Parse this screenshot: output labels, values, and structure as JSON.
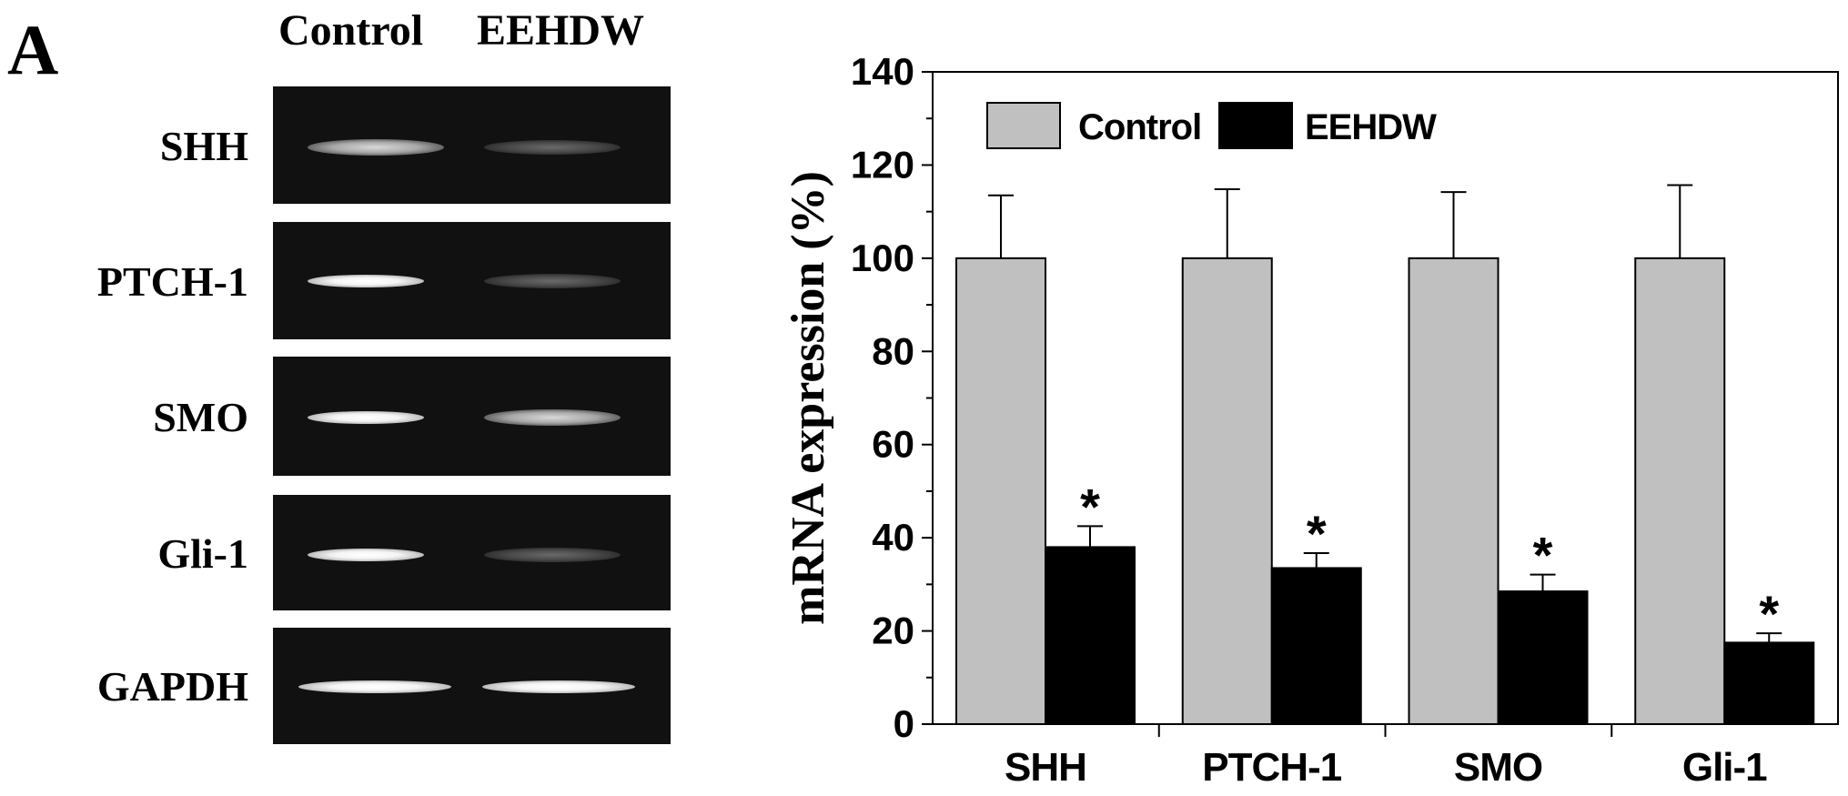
{
  "figure": {
    "panel_label": "A",
    "gel": {
      "lane_headers": [
        "Control",
        "EEHDW"
      ],
      "rows": [
        {
          "label": "SHH",
          "control_band": "medium",
          "treat_band": "faint"
        },
        {
          "label": "PTCH-1",
          "control_band": "bright",
          "treat_band": "faint"
        },
        {
          "label": "SMO",
          "control_band": "bright",
          "treat_band": "medium"
        },
        {
          "label": "Gli-1",
          "control_band": "bright",
          "treat_band": "faint"
        },
        {
          "label": "GAPDH",
          "control_band": "bright",
          "treat_band": "bright"
        }
      ]
    }
  },
  "chart_data": {
    "type": "bar",
    "categories": [
      "SHH",
      "PTCH-1",
      "SMO",
      "Gli-1"
    ],
    "series": [
      {
        "name": "Control",
        "values": [
          100,
          100,
          100,
          100
        ],
        "errors": [
          13.5,
          14.8,
          14.2,
          15.7
        ],
        "color": "#c0c0c0"
      },
      {
        "name": "EEHDW",
        "values": [
          38,
          33.5,
          28.5,
          17.5
        ],
        "errors": [
          4.5,
          3.2,
          3.6,
          2.0
        ],
        "color": "#000000"
      }
    ],
    "significance_marker": "*",
    "significance_on_series": "EEHDW",
    "ylabel": "mRNA expression (%)",
    "xlabel": "",
    "ylim": [
      0,
      140
    ],
    "ytick_step": 20,
    "yticks": [
      "0",
      "20",
      "40",
      "60",
      "80",
      "100",
      "120",
      "140"
    ],
    "legend_position": "top-left",
    "grid": false
  }
}
